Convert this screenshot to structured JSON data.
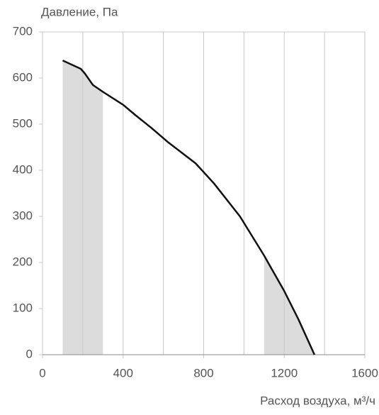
{
  "chart_data": {
    "type": "line",
    "y_axis_label": "Давление, Па",
    "x_axis_label": "Расход воздуха, м³/ч",
    "x": [
      100,
      190,
      210,
      250,
      300,
      400,
      460,
      540,
      620,
      760,
      850,
      980,
      1100,
      1200,
      1270,
      1350
    ],
    "series": [
      {
        "color": "#111111",
        "values": [
          638,
          620,
          610,
          585,
          570,
          542,
          520,
          492,
          462,
          415,
          372,
          300,
          215,
          138,
          77,
          0
        ]
      }
    ],
    "shaded_ranges": [
      [
        100,
        300
      ],
      [
        1100,
        1350
      ]
    ],
    "shade_color": "#dcdcdc",
    "xlim": [
      0,
      1600
    ],
    "xticks": [
      0,
      400,
      800,
      1200,
      1600
    ],
    "minor_xticks": [
      200,
      600,
      1000,
      1400
    ],
    "ylim": [
      0,
      700
    ],
    "yticks": [
      0,
      100,
      200,
      300,
      400,
      500,
      600,
      700
    ],
    "grid": "x"
  }
}
